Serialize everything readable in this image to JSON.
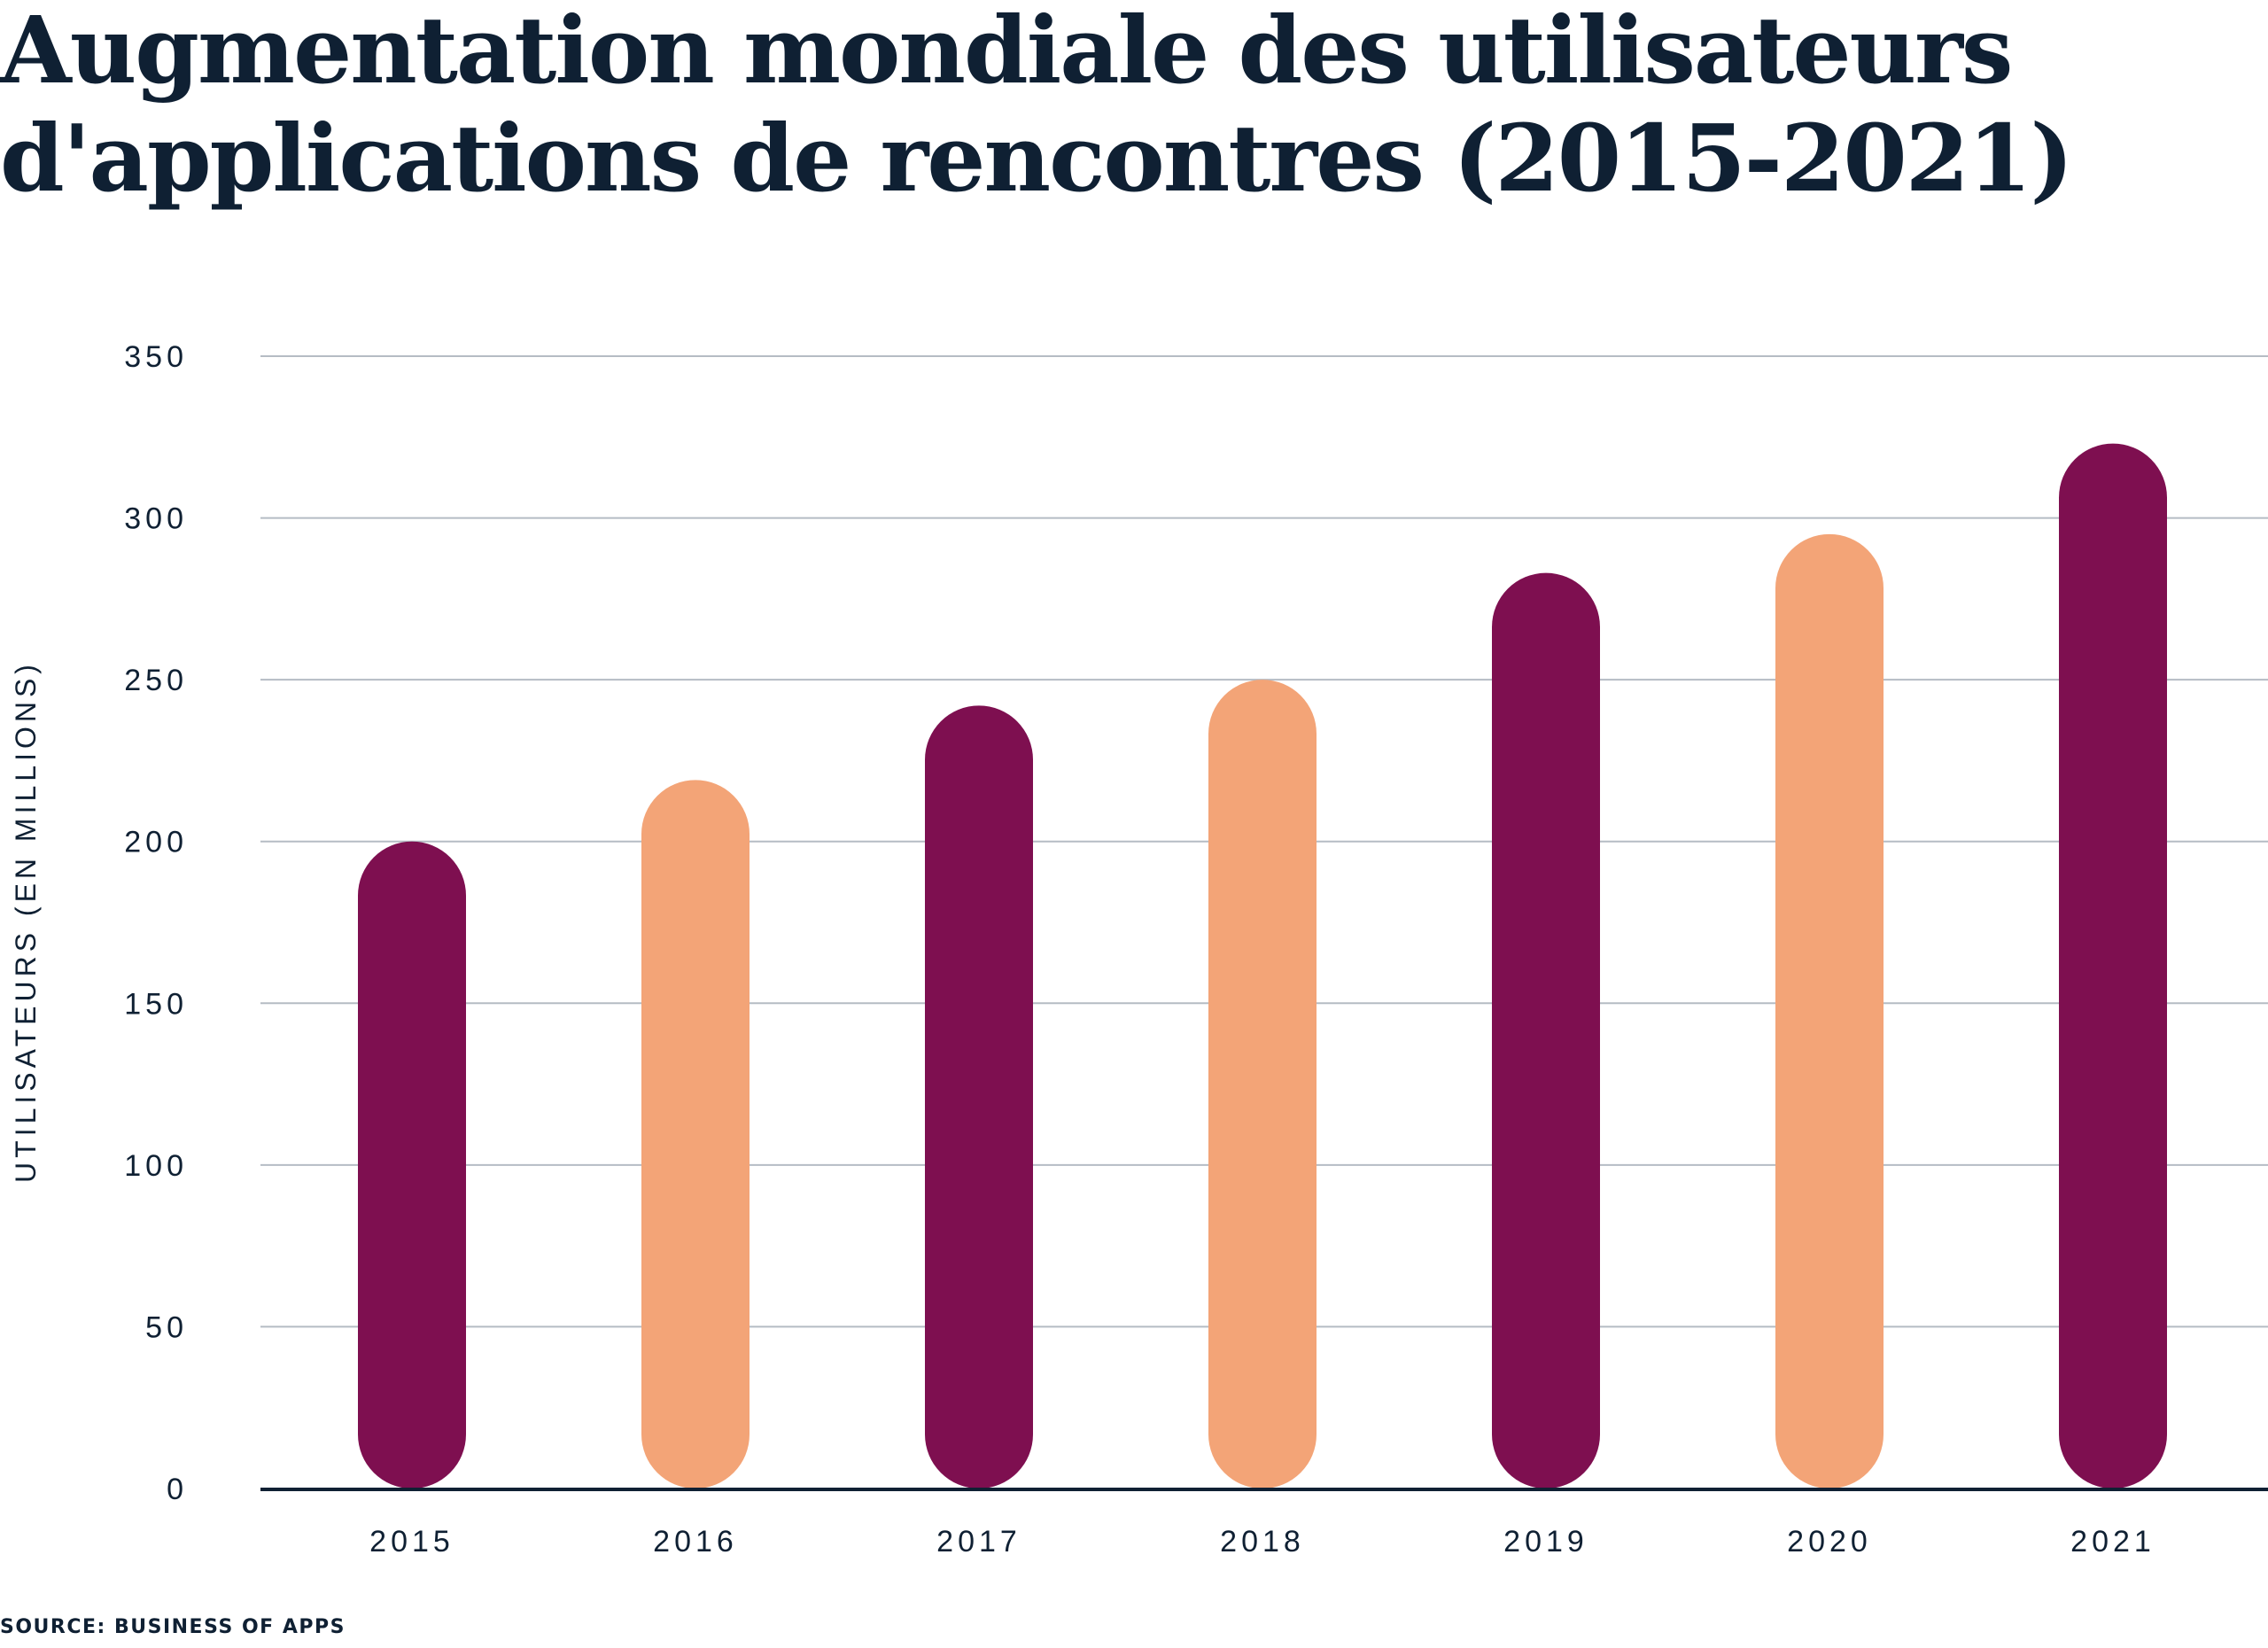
{
  "chart_data": {
    "type": "bar",
    "title": "Augmentation mondiale des utilisateurs d'applications de rencontres (2015-2021)",
    "xlabel": "",
    "ylabel": "UTILISATEURS (EN MILLIONS)",
    "categories": [
      "2015",
      "2016",
      "2017",
      "2018",
      "2019",
      "2020",
      "2021"
    ],
    "values": [
      200,
      219,
      242,
      250,
      283,
      295,
      323
    ],
    "ylim": [
      0,
      350
    ],
    "yticks": [
      "0",
      "50",
      "100",
      "150",
      "200",
      "250",
      "300",
      "350"
    ],
    "grid": true,
    "bar_colors": [
      "#7E0F50",
      "#F3A477",
      "#7E0F50",
      "#F3A477",
      "#7E0F50",
      "#F3A477",
      "#7E0F50"
    ],
    "source": "SOURCE: BUSINESS OF APPS"
  }
}
